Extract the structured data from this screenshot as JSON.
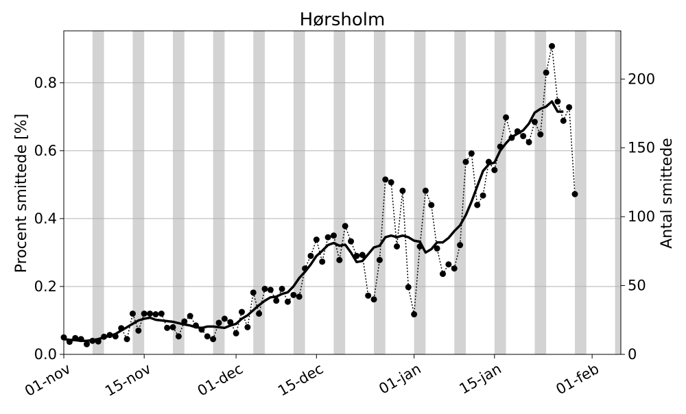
{
  "chart_data": {
    "type": "line",
    "title": "Hørsholm",
    "ylabel": "Procent smittede [%]",
    "y2label": "Antal smittede",
    "x_start": "2020-11-01",
    "xlim": [
      "2020-11-01",
      "2021-02-06"
    ],
    "ylim": [
      0,
      0.953
    ],
    "y2lim": [
      0,
      235
    ],
    "x_ticks": [
      {
        "date": "2020-11-01",
        "label": "01-nov"
      },
      {
        "date": "2020-11-15",
        "label": "15-nov"
      },
      {
        "date": "2020-12-01",
        "label": "01-dec"
      },
      {
        "date": "2020-12-15",
        "label": "15-dec"
      },
      {
        "date": "2021-01-01",
        "label": "01-jan"
      },
      {
        "date": "2021-01-15",
        "label": "15-jan"
      },
      {
        "date": "2021-02-01",
        "label": "01-feb"
      }
    ],
    "y_ticks": [
      {
        "value": 0.0,
        "label": "0.0"
      },
      {
        "value": 0.2,
        "label": "0.2"
      },
      {
        "value": 0.4,
        "label": "0.4"
      },
      {
        "value": 0.6,
        "label": "0.6"
      },
      {
        "value": 0.8,
        "label": "0.8"
      }
    ],
    "y2_ticks": [
      {
        "value": 0,
        "label": "0"
      },
      {
        "value": 50,
        "label": "50"
      },
      {
        "value": 100,
        "label": "100"
      },
      {
        "value": 150,
        "label": "150"
      },
      {
        "value": 200,
        "label": "200"
      }
    ],
    "grid": "y",
    "weekend_bands": [
      [
        "2020-11-06",
        "2020-11-08"
      ],
      [
        "2020-11-13",
        "2020-11-15"
      ],
      [
        "2020-11-20",
        "2020-11-22"
      ],
      [
        "2020-11-27",
        "2020-11-29"
      ],
      [
        "2020-12-04",
        "2020-12-06"
      ],
      [
        "2020-12-11",
        "2020-12-13"
      ],
      [
        "2020-12-18",
        "2020-12-20"
      ],
      [
        "2020-12-25",
        "2020-12-27"
      ],
      [
        "2021-01-01",
        "2021-01-03"
      ],
      [
        "2021-01-08",
        "2021-01-10"
      ],
      [
        "2021-01-15",
        "2021-01-17"
      ],
      [
        "2021-01-22",
        "2021-01-24"
      ],
      [
        "2021-01-29",
        "2021-01-31"
      ],
      [
        "2021-02-05",
        "2021-02-07"
      ]
    ],
    "series": [
      {
        "style": "dotted-markers",
        "x": [
          "2020-11-01",
          "2020-11-02",
          "2020-11-03",
          "2020-11-04",
          "2020-11-05",
          "2020-11-06",
          "2020-11-07",
          "2020-11-08",
          "2020-11-09",
          "2020-11-10",
          "2020-11-11",
          "2020-11-12",
          "2020-11-13",
          "2020-11-14",
          "2020-11-15",
          "2020-11-16",
          "2020-11-17",
          "2020-11-18",
          "2020-11-19",
          "2020-11-20",
          "2020-11-21",
          "2020-11-22",
          "2020-11-23",
          "2020-11-24",
          "2020-11-25",
          "2020-11-26",
          "2020-11-27",
          "2020-11-28",
          "2020-11-29",
          "2020-11-30",
          "2020-12-01",
          "2020-12-02",
          "2020-12-03",
          "2020-12-04",
          "2020-12-05",
          "2020-12-06",
          "2020-12-07",
          "2020-12-08",
          "2020-12-09",
          "2020-12-10",
          "2020-12-11",
          "2020-12-12",
          "2020-12-13",
          "2020-12-14",
          "2020-12-15",
          "2020-12-16",
          "2020-12-17",
          "2020-12-18",
          "2020-12-19",
          "2020-12-20",
          "2020-12-21",
          "2020-12-22",
          "2020-12-23",
          "2020-12-24",
          "2020-12-25",
          "2020-12-26",
          "2020-12-27",
          "2020-12-28",
          "2020-12-29",
          "2020-12-30",
          "2020-12-31",
          "2021-01-01",
          "2021-01-02",
          "2021-01-03",
          "2021-01-04",
          "2021-01-05",
          "2021-01-06",
          "2021-01-07",
          "2021-01-08",
          "2021-01-09",
          "2021-01-10",
          "2021-01-11",
          "2021-01-12",
          "2021-01-13",
          "2021-01-14",
          "2021-01-15",
          "2021-01-16",
          "2021-01-17",
          "2021-01-18",
          "2021-01-19",
          "2021-01-20",
          "2021-01-21",
          "2021-01-22",
          "2021-01-23",
          "2021-01-24",
          "2021-01-25",
          "2021-01-26",
          "2021-01-27",
          "2021-01-28",
          "2021-01-29"
        ],
        "values": [
          0.05,
          0.037,
          0.048,
          0.045,
          0.03,
          0.04,
          0.038,
          0.052,
          0.057,
          0.053,
          0.077,
          0.045,
          0.12,
          0.07,
          0.12,
          0.12,
          0.118,
          0.12,
          0.078,
          0.08,
          0.053,
          0.097,
          0.113,
          0.085,
          0.073,
          0.053,
          0.045,
          0.093,
          0.105,
          0.095,
          0.062,
          0.125,
          0.08,
          0.182,
          0.12,
          0.193,
          0.19,
          0.158,
          0.193,
          0.155,
          0.175,
          0.17,
          0.253,
          0.29,
          0.338,
          0.273,
          0.345,
          0.35,
          0.278,
          0.378,
          0.333,
          0.29,
          0.293,
          0.173,
          0.162,
          0.278,
          0.515,
          0.507,
          0.318,
          0.482,
          0.198,
          0.118,
          0.318,
          0.482,
          0.44,
          0.312,
          0.237,
          0.265,
          0.253,
          0.322,
          0.567,
          0.592,
          0.44,
          0.468,
          0.567,
          0.543,
          0.612,
          0.698,
          0.638,
          0.657,
          0.643,
          0.625,
          0.685,
          0.648,
          0.83,
          0.908,
          0.745,
          0.688,
          0.728,
          0.472
        ]
      },
      {
        "style": "solid-thick",
        "x": [
          "2020-11-01",
          "2020-11-02",
          "2020-11-03",
          "2020-11-04",
          "2020-11-05",
          "2020-11-06",
          "2020-11-07",
          "2020-11-08",
          "2020-11-09",
          "2020-11-10",
          "2020-11-11",
          "2020-11-12",
          "2020-11-13",
          "2020-11-14",
          "2020-11-15",
          "2020-11-16",
          "2020-11-17",
          "2020-11-18",
          "2020-11-19",
          "2020-11-20",
          "2020-11-21",
          "2020-11-22",
          "2020-11-23",
          "2020-11-24",
          "2020-11-25",
          "2020-11-26",
          "2020-11-27",
          "2020-11-28",
          "2020-11-29",
          "2020-11-30",
          "2020-12-01",
          "2020-12-02",
          "2020-12-03",
          "2020-12-04",
          "2020-12-05",
          "2020-12-06",
          "2020-12-07",
          "2020-12-08",
          "2020-12-09",
          "2020-12-10",
          "2020-12-11",
          "2020-12-12",
          "2020-12-13",
          "2020-12-14",
          "2020-12-15",
          "2020-12-16",
          "2020-12-17",
          "2020-12-18",
          "2020-12-19",
          "2020-12-20",
          "2020-12-21",
          "2020-12-22",
          "2020-12-23",
          "2020-12-24",
          "2020-12-25",
          "2020-12-26",
          "2020-12-27",
          "2020-12-28",
          "2020-12-29",
          "2020-12-30",
          "2020-12-31",
          "2021-01-01",
          "2021-01-02",
          "2021-01-03",
          "2021-01-04",
          "2021-01-05",
          "2021-01-06",
          "2021-01-07",
          "2021-01-08",
          "2021-01-09",
          "2021-01-10",
          "2021-01-11",
          "2021-01-12",
          "2021-01-13",
          "2021-01-14",
          "2021-01-15",
          "2021-01-16",
          "2021-01-17",
          "2021-01-18",
          "2021-01-19",
          "2021-01-20",
          "2021-01-21",
          "2021-01-22",
          "2021-01-23",
          "2021-01-24",
          "2021-01-25",
          "2021-01-26",
          "2021-01-27"
        ],
        "values": [
          0.045,
          0.043,
          0.042,
          0.04,
          0.04,
          0.042,
          0.045,
          0.05,
          0.055,
          0.06,
          0.07,
          0.08,
          0.09,
          0.1,
          0.105,
          0.108,
          0.102,
          0.1,
          0.098,
          0.096,
          0.092,
          0.088,
          0.085,
          0.08,
          0.078,
          0.082,
          0.082,
          0.08,
          0.078,
          0.085,
          0.09,
          0.105,
          0.115,
          0.13,
          0.145,
          0.158,
          0.168,
          0.17,
          0.178,
          0.183,
          0.2,
          0.225,
          0.243,
          0.265,
          0.29,
          0.305,
          0.322,
          0.328,
          0.32,
          0.323,
          0.3,
          0.272,
          0.275,
          0.295,
          0.315,
          0.32,
          0.345,
          0.35,
          0.345,
          0.35,
          0.345,
          0.335,
          0.332,
          0.3,
          0.31,
          0.33,
          0.33,
          0.343,
          0.363,
          0.38,
          0.41,
          0.45,
          0.495,
          0.54,
          0.56,
          0.565,
          0.6,
          0.622,
          0.64,
          0.65,
          0.66,
          0.68,
          0.712,
          0.723,
          0.73,
          0.745,
          0.715,
          0.715
        ]
      }
    ]
  }
}
